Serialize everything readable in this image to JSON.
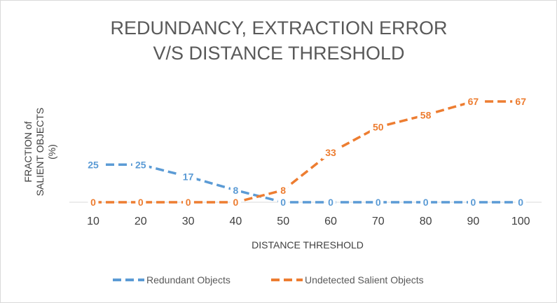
{
  "chart_data": {
    "type": "line",
    "title_lines": [
      "REDUNDANCY, EXTRACTION ERROR",
      "V/S DISTANCE THRESHOLD"
    ],
    "xlabel": "DISTANCE THRESHOLD",
    "ylabel_lines": [
      "FRACTION of",
      "SALIENT OBJECTS",
      "(%)"
    ],
    "categories": [
      "10",
      "20",
      "30",
      "40",
      "50",
      "60",
      "70",
      "80",
      "90",
      "100"
    ],
    "series": [
      {
        "name": "Redundant Objects",
        "color": "#5b9bd5",
        "line_style": "dashed",
        "values": [
          25,
          25,
          17,
          8,
          0,
          0,
          0,
          0,
          0,
          0
        ],
        "labels": [
          "25",
          "25",
          "17",
          "8",
          "0",
          "0",
          "0",
          "0",
          "0",
          "0"
        ]
      },
      {
        "name": "Undetected Salient Objects",
        "color": "#ed7d31",
        "line_style": "dashed",
        "values": [
          0,
          0,
          0,
          0,
          8,
          33,
          50,
          58,
          67,
          67
        ],
        "labels": [
          "0",
          "0",
          "0",
          "0",
          "8",
          "33",
          "50",
          "58",
          "67",
          "67"
        ]
      }
    ],
    "ylim": [
      0,
      70
    ],
    "y_axis_visible": false,
    "gridlines": false,
    "data_labels": true,
    "legend_position": "bottom"
  }
}
